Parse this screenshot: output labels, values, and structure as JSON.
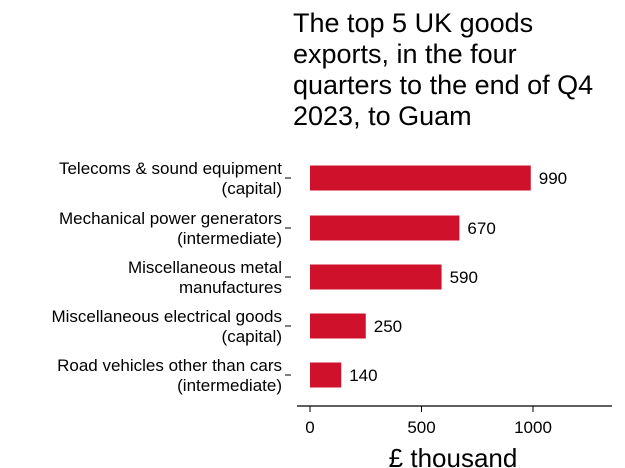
{
  "chart_data": {
    "type": "bar",
    "orientation": "horizontal",
    "title": "The top 5 UK goods exports, in the four quarters to the end of Q4 2023, to Guam",
    "xlabel": "£ thousand",
    "ylabel": "",
    "categories": [
      [
        "Telecoms & sound equipment",
        "(capital)"
      ],
      [
        "Mechanical power generators",
        "(intermediate)"
      ],
      [
        "Miscellaneous metal",
        "manufactures"
      ],
      [
        "Miscellaneous electrical goods",
        "(capital)"
      ],
      [
        "Road vehicles other than cars",
        "(intermediate)"
      ]
    ],
    "values": [
      990,
      670,
      590,
      250,
      140
    ],
    "data_labels": [
      "990",
      "670",
      "590",
      "250",
      "140"
    ],
    "xticks": [
      0,
      500,
      1000
    ],
    "xtick_labels": [
      "0",
      "500",
      "1000"
    ],
    "xlim": [
      0,
      1340
    ],
    "bar_color": "#d0112b",
    "grid": false,
    "legend": "none"
  }
}
